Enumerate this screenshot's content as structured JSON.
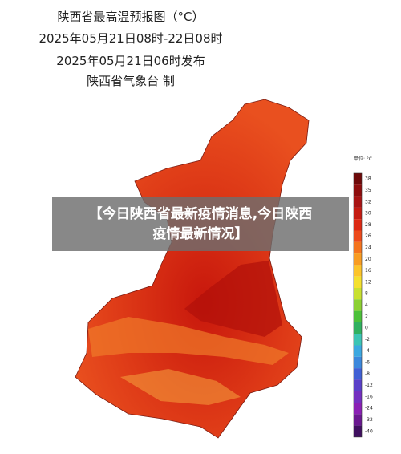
{
  "header": {
    "title": "陕西省最高温预报图（°C）",
    "period": "2025年05月21日08时-22日08时",
    "issued": "2025年05月21日06时发布",
    "issuer": "陕西省气象台 制"
  },
  "overlay": {
    "line1": "【今日陕西省最新疫情消息,今日陕西",
    "line2": "疫情最新情况】"
  },
  "legend": {
    "unit": "单位: °C",
    "labels": [
      38,
      35,
      32,
      30,
      28,
      26,
      24,
      20,
      16,
      12,
      8,
      4,
      2,
      0,
      -2,
      -4,
      -6,
      -8,
      -12,
      -16,
      -24,
      -32,
      -40
    ]
  }
}
